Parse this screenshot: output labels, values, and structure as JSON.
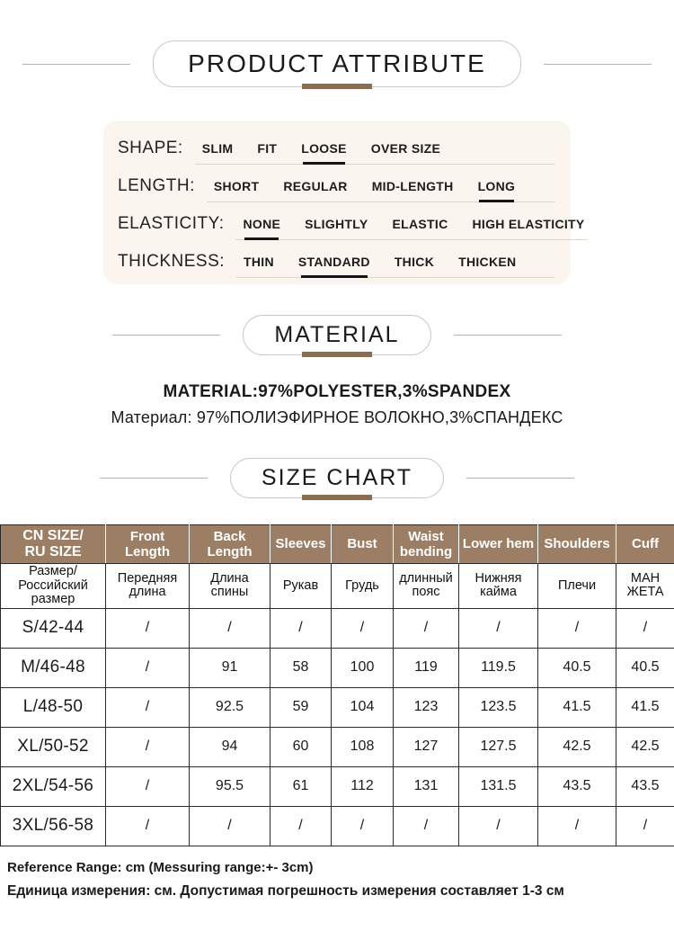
{
  "colors": {
    "accent_brown": "#8b6d52",
    "table_header_bg": "#9c7e65",
    "panel_bg": "#faf5ee",
    "page_bg": "#ffffff"
  },
  "sections": {
    "product_attribute_title": "PRODUCT ATTRIBUTE",
    "material_title": "MATERIAL",
    "size_chart_title": "SIZE CHART"
  },
  "attributes": [
    {
      "label": "SHAPE:",
      "options": [
        "SLIM",
        "FIT",
        "LOOSE",
        "OVER SIZE"
      ],
      "selected": 2
    },
    {
      "label": "LENGTH:",
      "options": [
        "SHORT",
        "REGULAR",
        "MID-LENGTH",
        "LONG"
      ],
      "selected": 3
    },
    {
      "label": "ELASTICITY:",
      "options": [
        "NONE",
        "SLIGHTLY",
        "ELASTIC",
        "HIGH ELASTICITY"
      ],
      "selected": 0
    },
    {
      "label": "THICKNESS:",
      "options": [
        "THIN",
        "STANDARD",
        "THICK",
        "THICKEN"
      ],
      "selected": 1
    }
  ],
  "material": {
    "line_en": "MATERIAL:97%POLYESTER,3%SPANDEX",
    "line_ru": "Материал: 97%ПОЛИЭФИРНОЕ ВОЛОКНО,3%СПАНДЕКС"
  },
  "size_table": {
    "header_en": [
      "CN SIZE/\nRU SIZE",
      "Front Length",
      "Back Length",
      "Sleeves",
      "Bust",
      "Waist\nbending",
      "Lower hem",
      "Shoulders",
      "Cuff"
    ],
    "header_ru": [
      "Размер/\nРоссийский\nразмер",
      "Передняя\nдлина",
      "Длина\nспины",
      "Рукав",
      "Грудь",
      "длинный\nпояс",
      "Нижняя\nкайма",
      "Плечи",
      "МАН\nЖЕТА"
    ],
    "rows": [
      [
        "S/42-44",
        "/",
        "/",
        "/",
        "/",
        "/",
        "/",
        "/",
        "/"
      ],
      [
        "M/46-48",
        "/",
        "91",
        "58",
        "100",
        "119",
        "119.5",
        "40.5",
        "40.5"
      ],
      [
        "L/48-50",
        "/",
        "92.5",
        "59",
        "104",
        "123",
        "123.5",
        "41.5",
        "41.5"
      ],
      [
        "XL/50-52",
        "/",
        "94",
        "60",
        "108",
        "127",
        "127.5",
        "42.5",
        "42.5"
      ],
      [
        "2XL/54-56",
        "/",
        "95.5",
        "61",
        "112",
        "131",
        "131.5",
        "43.5",
        "43.5"
      ],
      [
        "3XL/56-58",
        "/",
        "/",
        "/",
        "/",
        "/",
        "/",
        "/",
        "/"
      ]
    ]
  },
  "footer": {
    "line1": "Reference Range: cm (Messuring range:+- 3cm)",
    "line2": "Единица измерения: см. Допустимая погрешность измерения составляет 1-3 см"
  }
}
